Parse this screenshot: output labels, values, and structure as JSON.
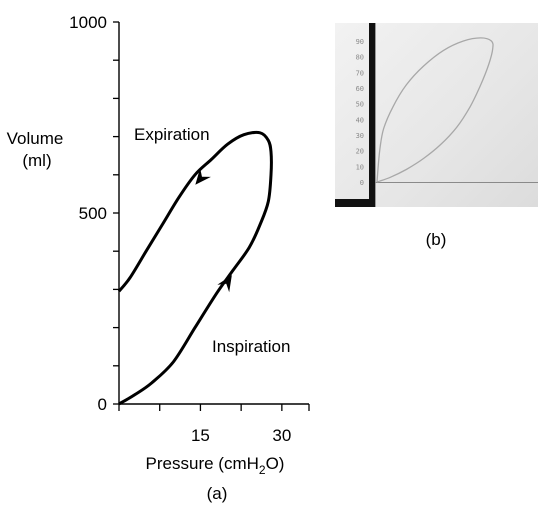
{
  "chart_data": [
    {
      "type": "line",
      "panel_label": "(a)",
      "xlabel_main": "Pressure (cmH",
      "xlabel_sub": "2",
      "xlabel_tail": "O)",
      "ylabel_line1": "Volume",
      "ylabel_line2": "(ml)",
      "xlim": [
        0,
        35
      ],
      "ylim": [
        0,
        1000
      ],
      "x_tick_labels": [
        "15",
        "30"
      ],
      "x_tick_values": [
        15,
        30
      ],
      "x_minor_ticks": [
        0,
        7.5,
        15,
        22.5,
        30,
        35
      ],
      "y_tick_labels": [
        "1000",
        "500",
        "0"
      ],
      "y_tick_values": [
        1000,
        500,
        0
      ],
      "y_minor_ticks": [
        0,
        100,
        200,
        300,
        400,
        500,
        600,
        700,
        800,
        900,
        1000
      ],
      "grid": false,
      "series": [
        {
          "name": "",
          "x": [
            0,
            3,
            6,
            10,
            14,
            18,
            21,
            24,
            26,
            27.5,
            28,
            28,
            27.5,
            26,
            23,
            20,
            17,
            14,
            11,
            8,
            5,
            2,
            0
          ],
          "y": [
            0,
            25,
            55,
            110,
            200,
            290,
            350,
            410,
            470,
            530,
            600,
            660,
            690,
            710,
            705,
            680,
            640,
            600,
            540,
            470,
            400,
            330,
            295
          ]
        }
      ],
      "annotations": [
        {
          "text": "Expiration",
          "x": 15,
          "y": 590,
          "arrow_direction": "down-left"
        },
        {
          "text": "Inspiration",
          "x": 20,
          "y": 320,
          "arrow_direction": "up-right"
        }
      ]
    },
    {
      "type": "line",
      "panel_label": "(b)",
      "y_tick_labels": [
        "90",
        "80",
        "70",
        "60",
        "50",
        "40",
        "30",
        "20",
        "10",
        "0"
      ],
      "y_tick_values": [
        90,
        80,
        70,
        60,
        50,
        40,
        30,
        20,
        10,
        0
      ],
      "ylim": [
        0,
        90
      ],
      "xlim": [
        0,
        100
      ],
      "grid": false,
      "series": [
        {
          "name": "",
          "x": [
            0,
            10,
            22,
            35,
            48,
            60,
            70,
            78,
            84,
            87,
            86,
            78,
            65,
            50,
            35,
            22,
            12,
            5,
            2,
            0
          ],
          "y": [
            0,
            3,
            8,
            15,
            24,
            35,
            48,
            62,
            75,
            85,
            90,
            92,
            90,
            84,
            74,
            62,
            48,
            34,
            20,
            0
          ]
        }
      ]
    }
  ]
}
